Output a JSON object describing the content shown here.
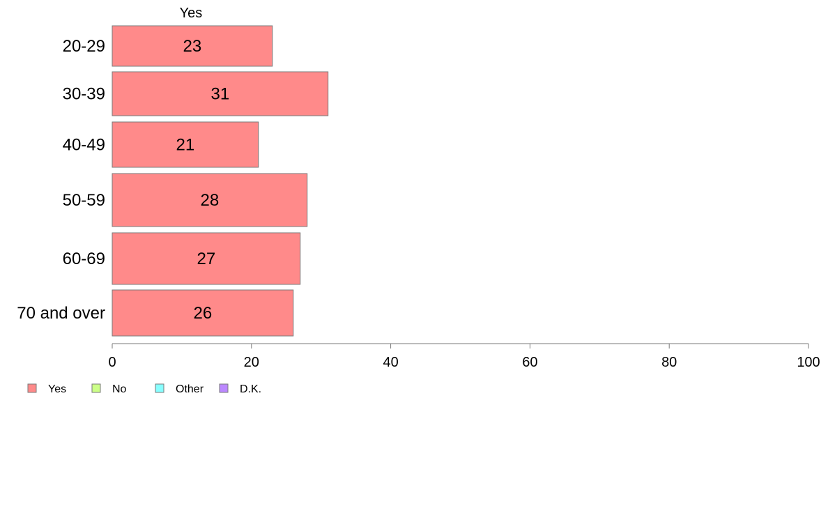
{
  "chart_data": {
    "type": "bar",
    "orientation": "horizontal",
    "categories": [
      "20-29",
      "30-39",
      "40-49",
      "50-59",
      "60-69",
      "70 and over"
    ],
    "series": [
      {
        "name": "Yes",
        "color": "#ff8a8a",
        "values": [
          23,
          31,
          21,
          28,
          27,
          26
        ]
      }
    ],
    "series_title": "Yes",
    "xlim": [
      0,
      100
    ],
    "x_ticks": [
      0,
      20,
      40,
      60,
      80,
      100
    ],
    "grid": false,
    "legend": {
      "placement": "bottom-left",
      "entries": [
        {
          "label": "Yes",
          "color": "#ff8a8a"
        },
        {
          "label": "No",
          "color": "#ccff88"
        },
        {
          "label": "Other",
          "color": "#88ffff"
        },
        {
          "label": "D.K.",
          "color": "#bb88ff"
        }
      ]
    }
  }
}
